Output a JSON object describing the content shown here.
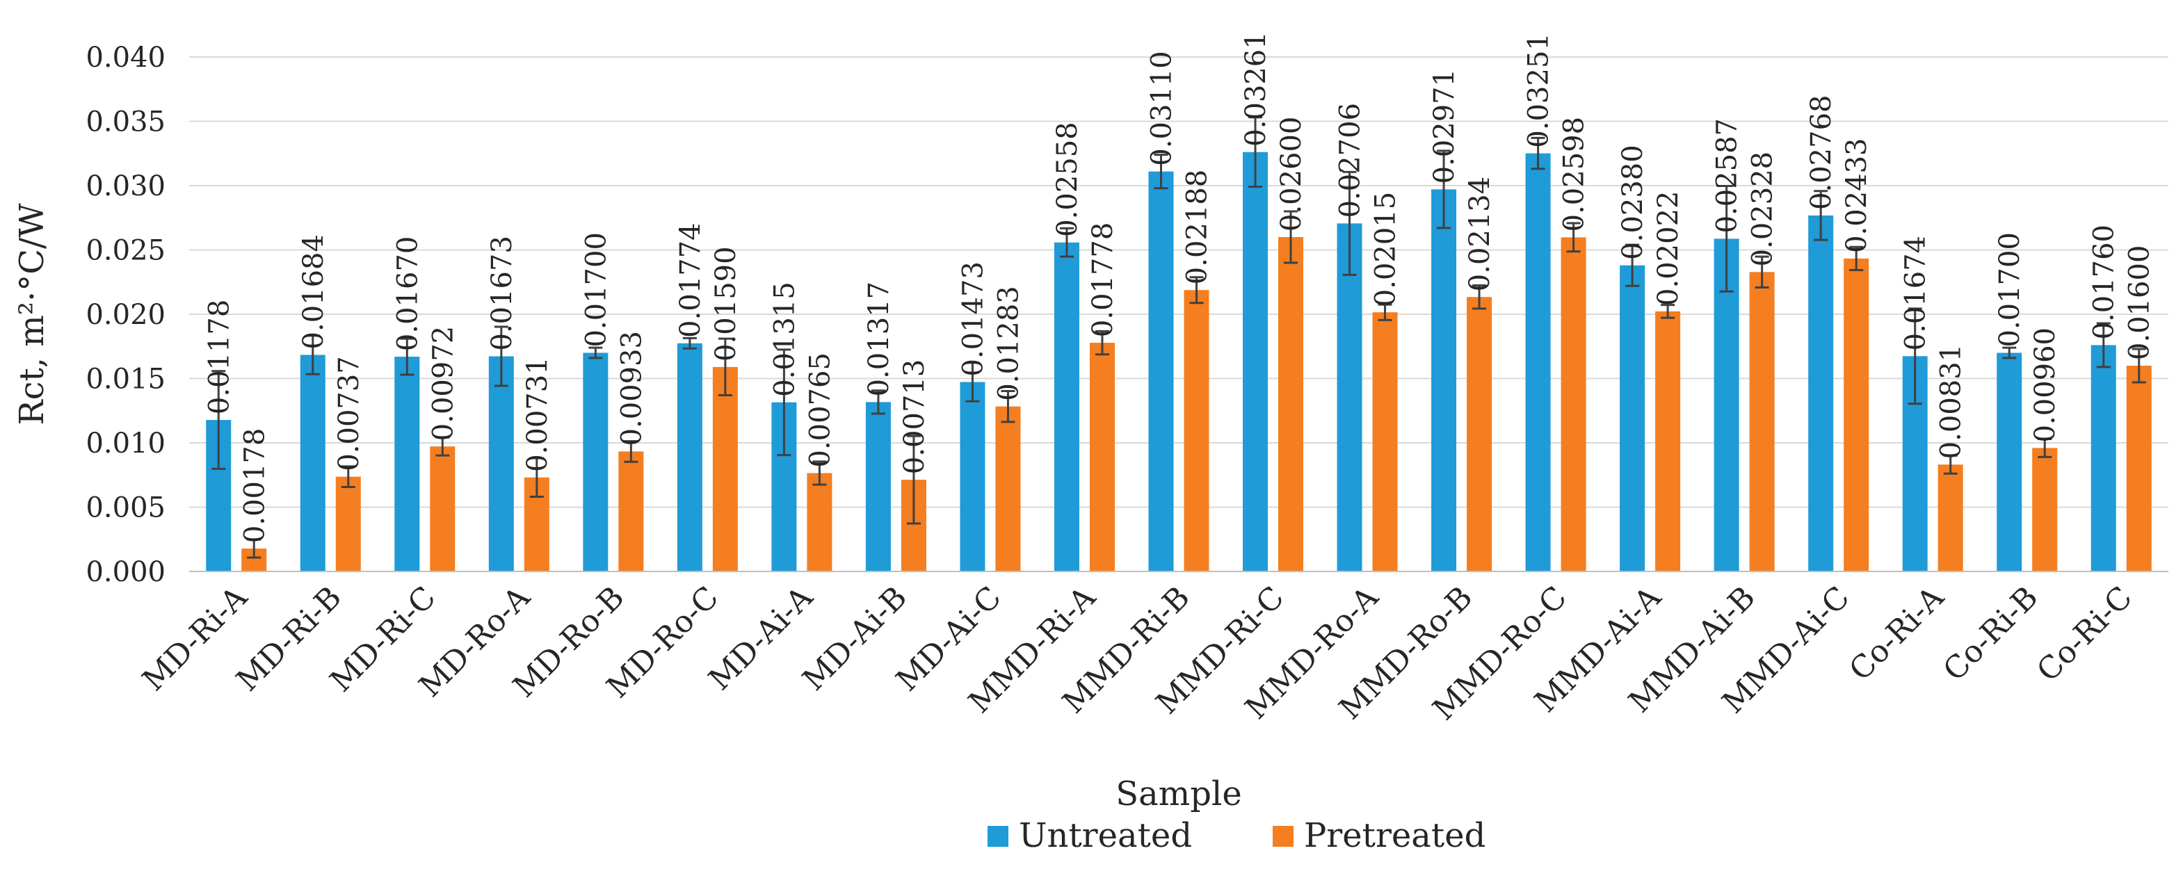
{
  "chart_data": {
    "type": "bar",
    "title": "",
    "xlabel": "Sample",
    "ylabel": "Rct, m²·°C/W",
    "ylim": [
      0,
      0.04
    ],
    "yticks": [
      "0.000",
      "0.005",
      "0.010",
      "0.015",
      "0.020",
      "0.025",
      "0.030",
      "0.035",
      "0.040"
    ],
    "grid": true,
    "legend_position": "bottom",
    "categories": [
      "MD-Ri-A",
      "MD-Ri-B",
      "MD-Ri-C",
      "MD-Ro-A",
      "MD-Ro-B",
      "MD-Ro-C",
      "MD-Ai-A",
      "MD-Ai-B",
      "MD-Ai-C",
      "MMD-Ri-A",
      "MMD-Ri-B",
      "MMD-Ri-C",
      "MMD-Ro-A",
      "MMD-Ro-B",
      "MMD-Ro-C",
      "MMD-Ai-A",
      "MMD-Ai-B",
      "MMD-Ai-C",
      "Co-Ri-A",
      "Co-Ri-B",
      "Co-Ri-C"
    ],
    "series": [
      {
        "name": "Untreated",
        "color": "#1f9bd7",
        "values": [
          0.01178,
          0.01684,
          0.0167,
          0.01673,
          0.017,
          0.01774,
          0.01315,
          0.01317,
          0.01473,
          0.02558,
          0.0311,
          0.03261,
          0.02706,
          0.02971,
          0.03251,
          0.0238,
          0.02587,
          0.02768,
          0.01674,
          0.017,
          0.0176
        ],
        "labels": [
          "0.01178",
          "0.01684",
          "0.01670",
          "0.01673",
          "0.01700",
          "0.01774",
          "0.01315",
          "0.01317",
          "0.01473",
          "0.02558",
          "0.03110",
          "0.03261",
          "0.02706",
          "0.02971",
          "0.03251",
          "0.02380",
          "0.02587",
          "0.02768",
          "0.01674",
          "0.01700",
          "0.01760"
        ],
        "errors": [
          0.0038,
          0.0015,
          0.0014,
          0.0023,
          0.0004,
          0.0004,
          0.0041,
          0.0009,
          0.0015,
          0.0011,
          0.0013,
          0.0027,
          0.004,
          0.003,
          0.0012,
          0.0016,
          0.0041,
          0.0019,
          0.0037,
          0.0004,
          0.0017
        ]
      },
      {
        "name": "Pretreated",
        "color": "#f47e20",
        "values": [
          0.00178,
          0.00737,
          0.00972,
          0.00731,
          0.00933,
          0.0159,
          0.00765,
          0.00713,
          0.01283,
          0.01778,
          0.02188,
          0.026,
          0.02015,
          0.02134,
          0.02598,
          0.02022,
          0.02328,
          0.02433,
          0.00831,
          0.0096,
          0.016
        ],
        "labels": [
          "0.00178",
          "0.00737",
          "0.00972",
          "0.00731",
          "0.00933",
          "0.01590",
          "0.00765",
          "0.00713",
          "0.01283",
          "0.01778",
          "0.02188",
          "0.02600",
          "0.02015",
          "0.02134",
          "0.02598",
          "0.02022",
          "0.02328",
          "0.02433",
          "0.00831",
          "0.00960",
          "0.01600"
        ],
        "errors": [
          0.0007,
          0.0008,
          0.0007,
          0.0015,
          0.0008,
          0.0022,
          0.0009,
          0.0034,
          0.0012,
          0.0009,
          0.001,
          0.002,
          0.0006,
          0.0009,
          0.0011,
          0.0005,
          0.0012,
          0.0009,
          0.0007,
          0.0007,
          0.0013
        ]
      }
    ]
  }
}
